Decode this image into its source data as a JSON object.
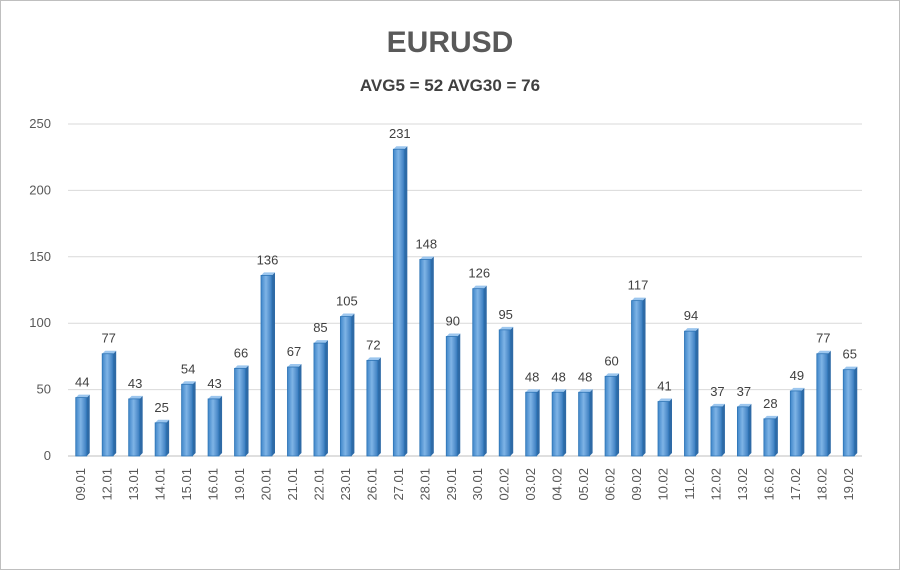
{
  "chart_data": {
    "type": "bar",
    "title": "EURUSD",
    "subtitle": "AVG5 = 52 AVG30 = 76",
    "xlabel": "",
    "ylabel": "",
    "ylim": [
      0,
      250
    ],
    "yticks": [
      0,
      50,
      100,
      150,
      200,
      250
    ],
    "grid": true,
    "legend": "none",
    "bar_color": "#5b9bd5",
    "bar_edge_color": "#2e75b6",
    "categories": [
      "09.01",
      "12.01",
      "13.01",
      "14.01",
      "15.01",
      "16.01",
      "19.01",
      "20.01",
      "21.01",
      "22.01",
      "23.01",
      "26.01",
      "27.01",
      "28.01",
      "29.01",
      "30.01",
      "02.02",
      "03.02",
      "04.02",
      "05.02",
      "06.02",
      "09.02",
      "10.02",
      "11.02",
      "12.02",
      "13.02",
      "16.02",
      "17.02",
      "18.02",
      "19.02"
    ],
    "values": [
      44,
      77,
      43,
      25,
      54,
      43,
      66,
      136,
      67,
      85,
      105,
      72,
      231,
      148,
      90,
      126,
      95,
      48,
      48,
      48,
      60,
      117,
      41,
      94,
      37,
      37,
      28,
      49,
      77,
      65
    ]
  }
}
